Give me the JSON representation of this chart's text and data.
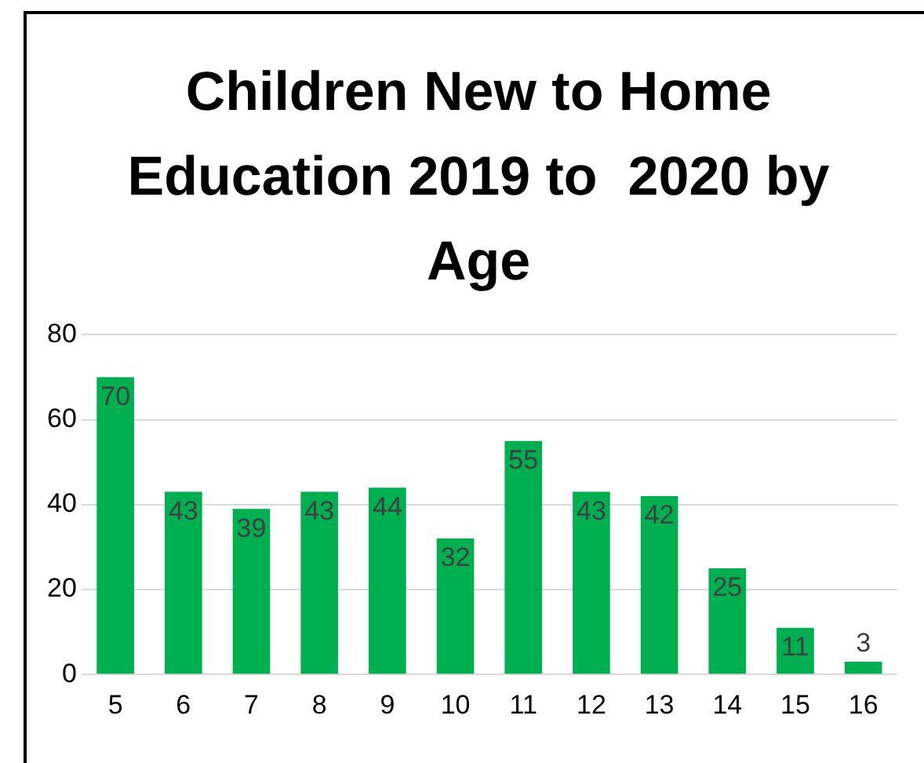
{
  "chart_data": {
    "type": "bar",
    "title": "Children New to Home Education 2019 to  2020 by Age",
    "categories": [
      "5",
      "6",
      "7",
      "8",
      "9",
      "10",
      "11",
      "12",
      "13",
      "14",
      "15",
      "16"
    ],
    "values": [
      70,
      43,
      39,
      43,
      44,
      32,
      55,
      43,
      42,
      25,
      11,
      3
    ],
    "color": "#00b050",
    "ylim": [
      0,
      80
    ],
    "yticks": [
      0,
      20,
      40,
      60,
      80
    ],
    "grid": "y",
    "data_labels": true,
    "legend": false
  }
}
